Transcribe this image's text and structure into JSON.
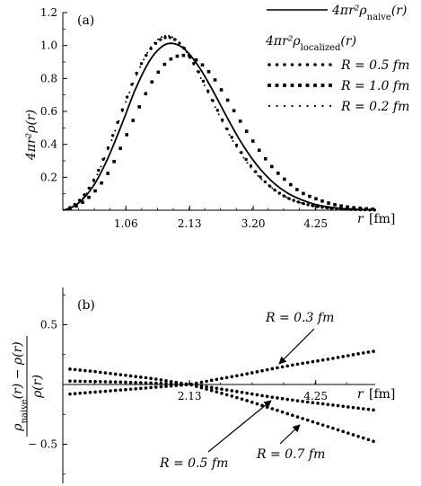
{
  "chart_data": [
    {
      "type": "line",
      "panel_label": "(a)",
      "xlabel": "r",
      "xunit": "[fm]",
      "ylabel": "4πr²ρ(r)",
      "xlim": [
        0,
        5.25
      ],
      "ylim": [
        0,
        1.2
      ],
      "xticks": [
        "1.06",
        "2.13",
        "3.20",
        "4.25"
      ],
      "yticks": [
        "0.2",
        "0.4",
        "0.6",
        "0.8",
        "1.0",
        "1.2"
      ],
      "legend_title": "4πr²ρ_localized(r)",
      "legend_placement": "top-right",
      "series": [
        {
          "name": "4πr²ρ_naive(r)",
          "style": "solid",
          "x": [
            0.0,
            0.25,
            0.5,
            0.75,
            1.0,
            1.25,
            1.5,
            1.75,
            2.0,
            2.25,
            2.5,
            2.75,
            3.0,
            3.25,
            3.5,
            3.75,
            4.0,
            4.25,
            4.5,
            4.75,
            5.0,
            5.25
          ],
          "values": [
            0.0,
            0.04,
            0.14,
            0.31,
            0.53,
            0.76,
            0.93,
            1.01,
            0.99,
            0.89,
            0.74,
            0.57,
            0.41,
            0.28,
            0.18,
            0.11,
            0.065,
            0.035,
            0.018,
            0.009,
            0.004,
            0.002
          ]
        },
        {
          "name": "R = 0.5 fm",
          "style": "dots",
          "x": [
            0.0,
            0.25,
            0.5,
            0.75,
            1.0,
            1.25,
            1.5,
            1.75,
            2.0,
            2.25,
            2.5,
            2.75,
            3.0,
            3.25,
            3.5,
            3.75,
            4.0,
            4.25,
            4.5,
            4.75,
            5.0,
            5.25
          ],
          "values": [
            0.0,
            0.05,
            0.17,
            0.37,
            0.61,
            0.84,
            0.99,
            1.05,
            1.0,
            0.86,
            0.68,
            0.5,
            0.35,
            0.23,
            0.14,
            0.08,
            0.045,
            0.024,
            0.012,
            0.006,
            0.003,
            0.001
          ]
        },
        {
          "name": "R = 1.0 fm",
          "style": "squares",
          "x": [
            0.0,
            0.25,
            0.5,
            0.75,
            1.0,
            1.25,
            1.5,
            1.75,
            2.0,
            2.25,
            2.5,
            2.75,
            3.0,
            3.25,
            3.5,
            3.75,
            4.0,
            4.25,
            4.5,
            4.75,
            5.0,
            5.25
          ],
          "values": [
            0.0,
            0.03,
            0.1,
            0.22,
            0.4,
            0.6,
            0.78,
            0.9,
            0.94,
            0.91,
            0.82,
            0.68,
            0.53,
            0.39,
            0.27,
            0.18,
            0.11,
            0.07,
            0.04,
            0.022,
            0.012,
            0.006
          ]
        },
        {
          "name": "R = 0.2 fm",
          "style": "small-dots",
          "x": [
            0.0,
            0.25,
            0.5,
            0.75,
            1.0,
            1.25,
            1.5,
            1.75,
            2.0,
            2.25,
            2.5,
            2.75,
            3.0,
            3.25,
            3.5,
            3.75,
            4.0,
            4.25,
            4.5,
            4.75,
            5.0,
            5.25
          ],
          "values": [
            0.0,
            0.04,
            0.16,
            0.36,
            0.6,
            0.83,
            1.0,
            1.06,
            1.0,
            0.85,
            0.67,
            0.49,
            0.34,
            0.22,
            0.14,
            0.08,
            0.045,
            0.024,
            0.012,
            0.006,
            0.003,
            0.001
          ]
        }
      ]
    },
    {
      "type": "scatter",
      "panel_label": "(b)",
      "ylabel": "(ρ_naive(r) − ρ(r)) / ρ(r)",
      "xlabel": "r",
      "xunit": "[fm]",
      "xlim": [
        0,
        5.25
      ],
      "ylim": [
        -0.8,
        0.85
      ],
      "xticks": [
        "2.13",
        "4.25"
      ],
      "yticks": [
        "0.5",
        "− 0.5"
      ],
      "series": [
        {
          "name": "R = 0.3 fm",
          "x": [
            0.0,
            0.5,
            1.0,
            1.5,
            2.0,
            2.13,
            2.5,
            3.0,
            3.5,
            4.0,
            4.5,
            5.0,
            5.25
          ],
          "values": [
            -0.085,
            -0.065,
            -0.045,
            -0.025,
            -0.005,
            0.0,
            0.035,
            0.08,
            0.13,
            0.175,
            0.215,
            0.26,
            0.28
          ]
        },
        {
          "name": "R = 0.5 fm",
          "x": [
            0.0,
            0.5,
            1.0,
            1.5,
            2.0,
            2.13,
            2.5,
            3.0,
            3.5,
            4.0,
            4.5,
            5.0,
            5.25
          ],
          "values": [
            0.03,
            0.025,
            0.02,
            0.012,
            0.003,
            0.0,
            -0.025,
            -0.065,
            -0.105,
            -0.14,
            -0.17,
            -0.2,
            -0.215
          ]
        },
        {
          "name": "R = 0.7 fm",
          "x": [
            0.0,
            0.5,
            1.0,
            1.5,
            2.0,
            2.13,
            2.5,
            3.0,
            3.5,
            4.0,
            4.5,
            5.0,
            5.25
          ],
          "values": [
            0.135,
            0.11,
            0.08,
            0.05,
            0.01,
            0.0,
            -0.05,
            -0.12,
            -0.2,
            -0.28,
            -0.36,
            -0.44,
            -0.48
          ]
        }
      ],
      "annotations": [
        "R = 0.3 fm",
        "R = 0.5 fm",
        "R = 0.7 fm"
      ]
    }
  ]
}
